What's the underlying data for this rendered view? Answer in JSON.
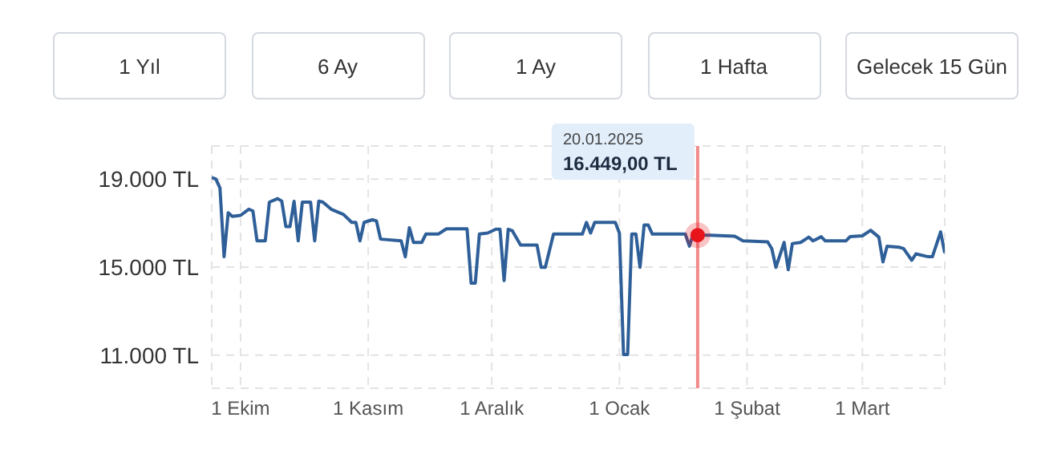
{
  "chart_data": {
    "type": "line",
    "annotations": [
      "1 Yıl",
      "6 Ay",
      "1 Ay",
      "1 Hafta",
      "Gelecek 15 Gün"
    ],
    "x": [
      "2024-09-24",
      "2024-09-25",
      "2024-09-26",
      "2024-09-27",
      "2024-09-28",
      "2024-09-29",
      "2024-10-01",
      "2024-10-03",
      "2024-10-04",
      "2024-10-05",
      "2024-10-07",
      "2024-10-08",
      "2024-10-10",
      "2024-10-11",
      "2024-10-12",
      "2024-10-13",
      "2024-10-14",
      "2024-10-15",
      "2024-10-16",
      "2024-10-18",
      "2024-10-19",
      "2024-10-20",
      "2024-10-21",
      "2024-10-23",
      "2024-10-26",
      "2024-10-28",
      "2024-10-29",
      "2024-10-30",
      "2024-10-31",
      "2024-11-02",
      "2024-11-03",
      "2024-11-04",
      "2024-11-09",
      "2024-11-10",
      "2024-11-11",
      "2024-11-12",
      "2024-11-14",
      "2024-11-15",
      "2024-11-18",
      "2024-11-20",
      "2024-11-25",
      "2024-11-26",
      "2024-11-27",
      "2024-11-28",
      "2024-11-30",
      "2024-12-02",
      "2024-12-03",
      "2024-12-04",
      "2024-12-05",
      "2024-12-06",
      "2024-12-08",
      "2024-12-12",
      "2024-12-13",
      "2024-12-14",
      "2024-12-16",
      "2024-12-23",
      "2024-12-24",
      "2024-12-25",
      "2024-12-26",
      "2024-12-31",
      "2025-01-01",
      "2025-01-02",
      "2025-01-03",
      "2025-01-04",
      "2025-01-05",
      "2025-01-06",
      "2025-01-07",
      "2025-01-08",
      "2025-01-09",
      "2025-01-17",
      "2025-01-18",
      "2025-01-19",
      "2025-01-20",
      "2025-01-23",
      "2025-01-29",
      "2025-01-31",
      "2025-02-06",
      "2025-02-07",
      "2025-02-08",
      "2025-02-10",
      "2025-02-11",
      "2025-02-12",
      "2025-02-14",
      "2025-02-16",
      "2025-02-17",
      "2025-02-19",
      "2025-02-20",
      "2025-02-25",
      "2025-02-26",
      "2025-03-01",
      "2025-03-03",
      "2025-03-05",
      "2025-03-06",
      "2025-03-07",
      "2025-03-10",
      "2025-03-11",
      "2025-03-13",
      "2025-03-14",
      "2025-03-17",
      "2025-03-18",
      "2025-03-20",
      "2025-03-21"
    ],
    "series": [
      {
        "color": "#2f5f98",
        "values": [
          19070,
          19000,
          18590,
          15470,
          17470,
          17300,
          17350,
          17630,
          17550,
          16190,
          16190,
          17950,
          18110,
          18000,
          16840,
          16840,
          17990,
          16190,
          17950,
          17950,
          16190,
          18000,
          17950,
          17630,
          17390,
          17030,
          17030,
          16190,
          17030,
          17150,
          17100,
          16270,
          16190,
          15470,
          16790,
          16120,
          16120,
          16500,
          16500,
          16740,
          16740,
          14270,
          14270,
          16500,
          16550,
          16720,
          16720,
          14390,
          16720,
          16650,
          16000,
          16000,
          14990,
          14990,
          16500,
          16500,
          17030,
          16550,
          17030,
          17030,
          16550,
          11030,
          11030,
          16500,
          16500,
          14990,
          16910,
          16910,
          16500,
          16500,
          15950,
          16550,
          16450,
          16450,
          16400,
          16190,
          16150,
          15840,
          14990,
          16120,
          14880,
          16070,
          16120,
          16360,
          16190,
          16380,
          16190,
          16190,
          16380,
          16420,
          16670,
          16360,
          15240,
          15950,
          15900,
          15840,
          15310,
          15600,
          15470,
          15470,
          16600,
          15640
        ]
      }
    ],
    "xlim": [
      "2024-09-24",
      "2025-03-21"
    ],
    "xticks": [
      {
        "value": "2024-09-24",
        "label": null
      },
      {
        "value": "2024-10-01",
        "label": "1 Ekim"
      },
      {
        "value": "2024-11-01",
        "label": "1 Kasım"
      },
      {
        "value": "2024-12-01",
        "label": "1 Aralık"
      },
      {
        "value": "2025-01-01",
        "label": "1 Ocak"
      },
      {
        "value": "2025-02-01",
        "label": "1 Şubat"
      },
      {
        "value": "2025-03-01",
        "label": "1 Mart"
      },
      {
        "value": "2025-03-21",
        "label": null
      }
    ],
    "ylim": [
      9500,
      20500
    ],
    "yticks": [
      {
        "value": 9500,
        "label": null
      },
      {
        "value": 11000,
        "label": "11.000 TL"
      },
      {
        "value": 15000,
        "label": "15.000 TL"
      },
      {
        "value": 19000,
        "label": "19.000 TL"
      },
      {
        "value": 20500,
        "label": null
      }
    ],
    "ref_lines": [
      {
        "axis": "x",
        "value": "2025-01-20",
        "color": "#f28b8b",
        "label": "20.01.2025\n16.449,00 TL"
      }
    ],
    "grid": true,
    "marker": "none",
    "line_style": "solid",
    "legend": false
  }
}
